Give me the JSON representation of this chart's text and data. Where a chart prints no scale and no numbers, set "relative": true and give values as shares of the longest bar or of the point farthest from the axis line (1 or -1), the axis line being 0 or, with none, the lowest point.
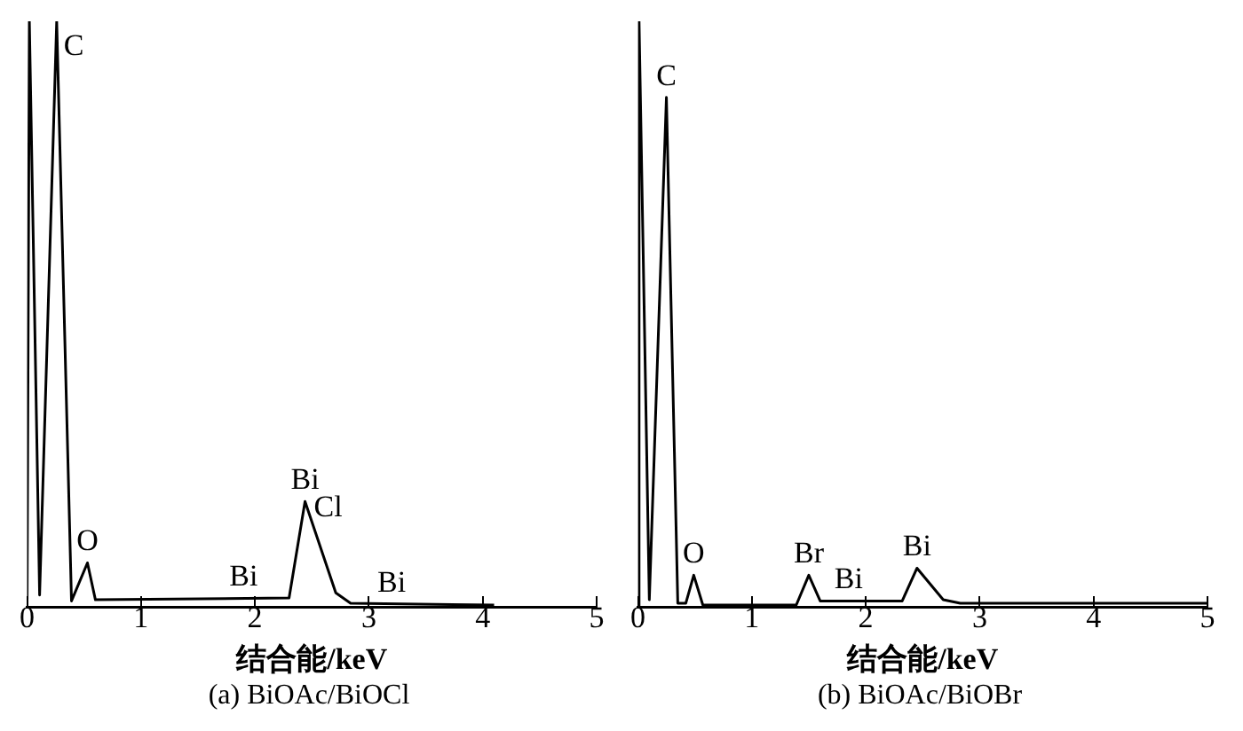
{
  "chart_data": [
    {
      "type": "line",
      "relative": true,
      "title": "(a) BiOAc/BiOCl",
      "xlabel": "结合能/keV",
      "color": "#000000",
      "xlim": [
        0,
        5
      ],
      "xticks": [
        0,
        1,
        2,
        3,
        4,
        5
      ],
      "x": [
        0,
        0.02,
        0.11,
        0.26,
        0.39,
        0.53,
        0.6,
        2.3,
        2.44,
        2.71,
        2.84,
        4.1
      ],
      "values": [
        0,
        1,
        0.02,
        1,
        0.01,
        0.075,
        0.012,
        0.015,
        0.18,
        0.024,
        0.006,
        0.003
      ],
      "annotations": [
        {
          "text": "C",
          "x": 0.26,
          "y": 1
        },
        {
          "text": "O",
          "x": 0.53,
          "y": 0.075
        },
        {
          "text": "Bi",
          "x": 1.9,
          "y": 0.0143
        },
        {
          "text": "Bi",
          "x": 2.44,
          "y": 0.18
        },
        {
          "text": "Cl",
          "x": 2.44,
          "y": 0.18
        },
        {
          "text": "Bi",
          "x": 3.2,
          "y": 0.005
        }
      ]
    },
    {
      "type": "line",
      "relative": true,
      "title": "(b) BiOAc/BiOBr",
      "xlabel": "结合能/keV",
      "color": "#000000",
      "xlim": [
        0,
        5
      ],
      "xticks": [
        0,
        1,
        2,
        3,
        4,
        5
      ],
      "x": [
        0,
        0.01,
        0.1,
        0.25,
        0.35,
        0.42,
        0.49,
        0.57,
        1.39,
        1.5,
        1.6,
        2.32,
        2.45,
        2.68,
        2.83,
        5
      ],
      "values": [
        0,
        1,
        0.012,
        0.87,
        0.006,
        0.006,
        0.054,
        0.003,
        0.003,
        0.054,
        0.01,
        0.01,
        0.066,
        0.012,
        0.006,
        0.006
      ],
      "annotations": [
        {
          "text": "C",
          "x": 0.25,
          "y": 0.87
        },
        {
          "text": "O",
          "x": 0.49,
          "y": 0.054
        },
        {
          "text": "Br",
          "x": 1.5,
          "y": 0.054
        },
        {
          "text": "Bi",
          "x": 1.85,
          "y": 0.01
        },
        {
          "text": "Bi",
          "x": 2.45,
          "y": 0.066
        }
      ]
    }
  ]
}
